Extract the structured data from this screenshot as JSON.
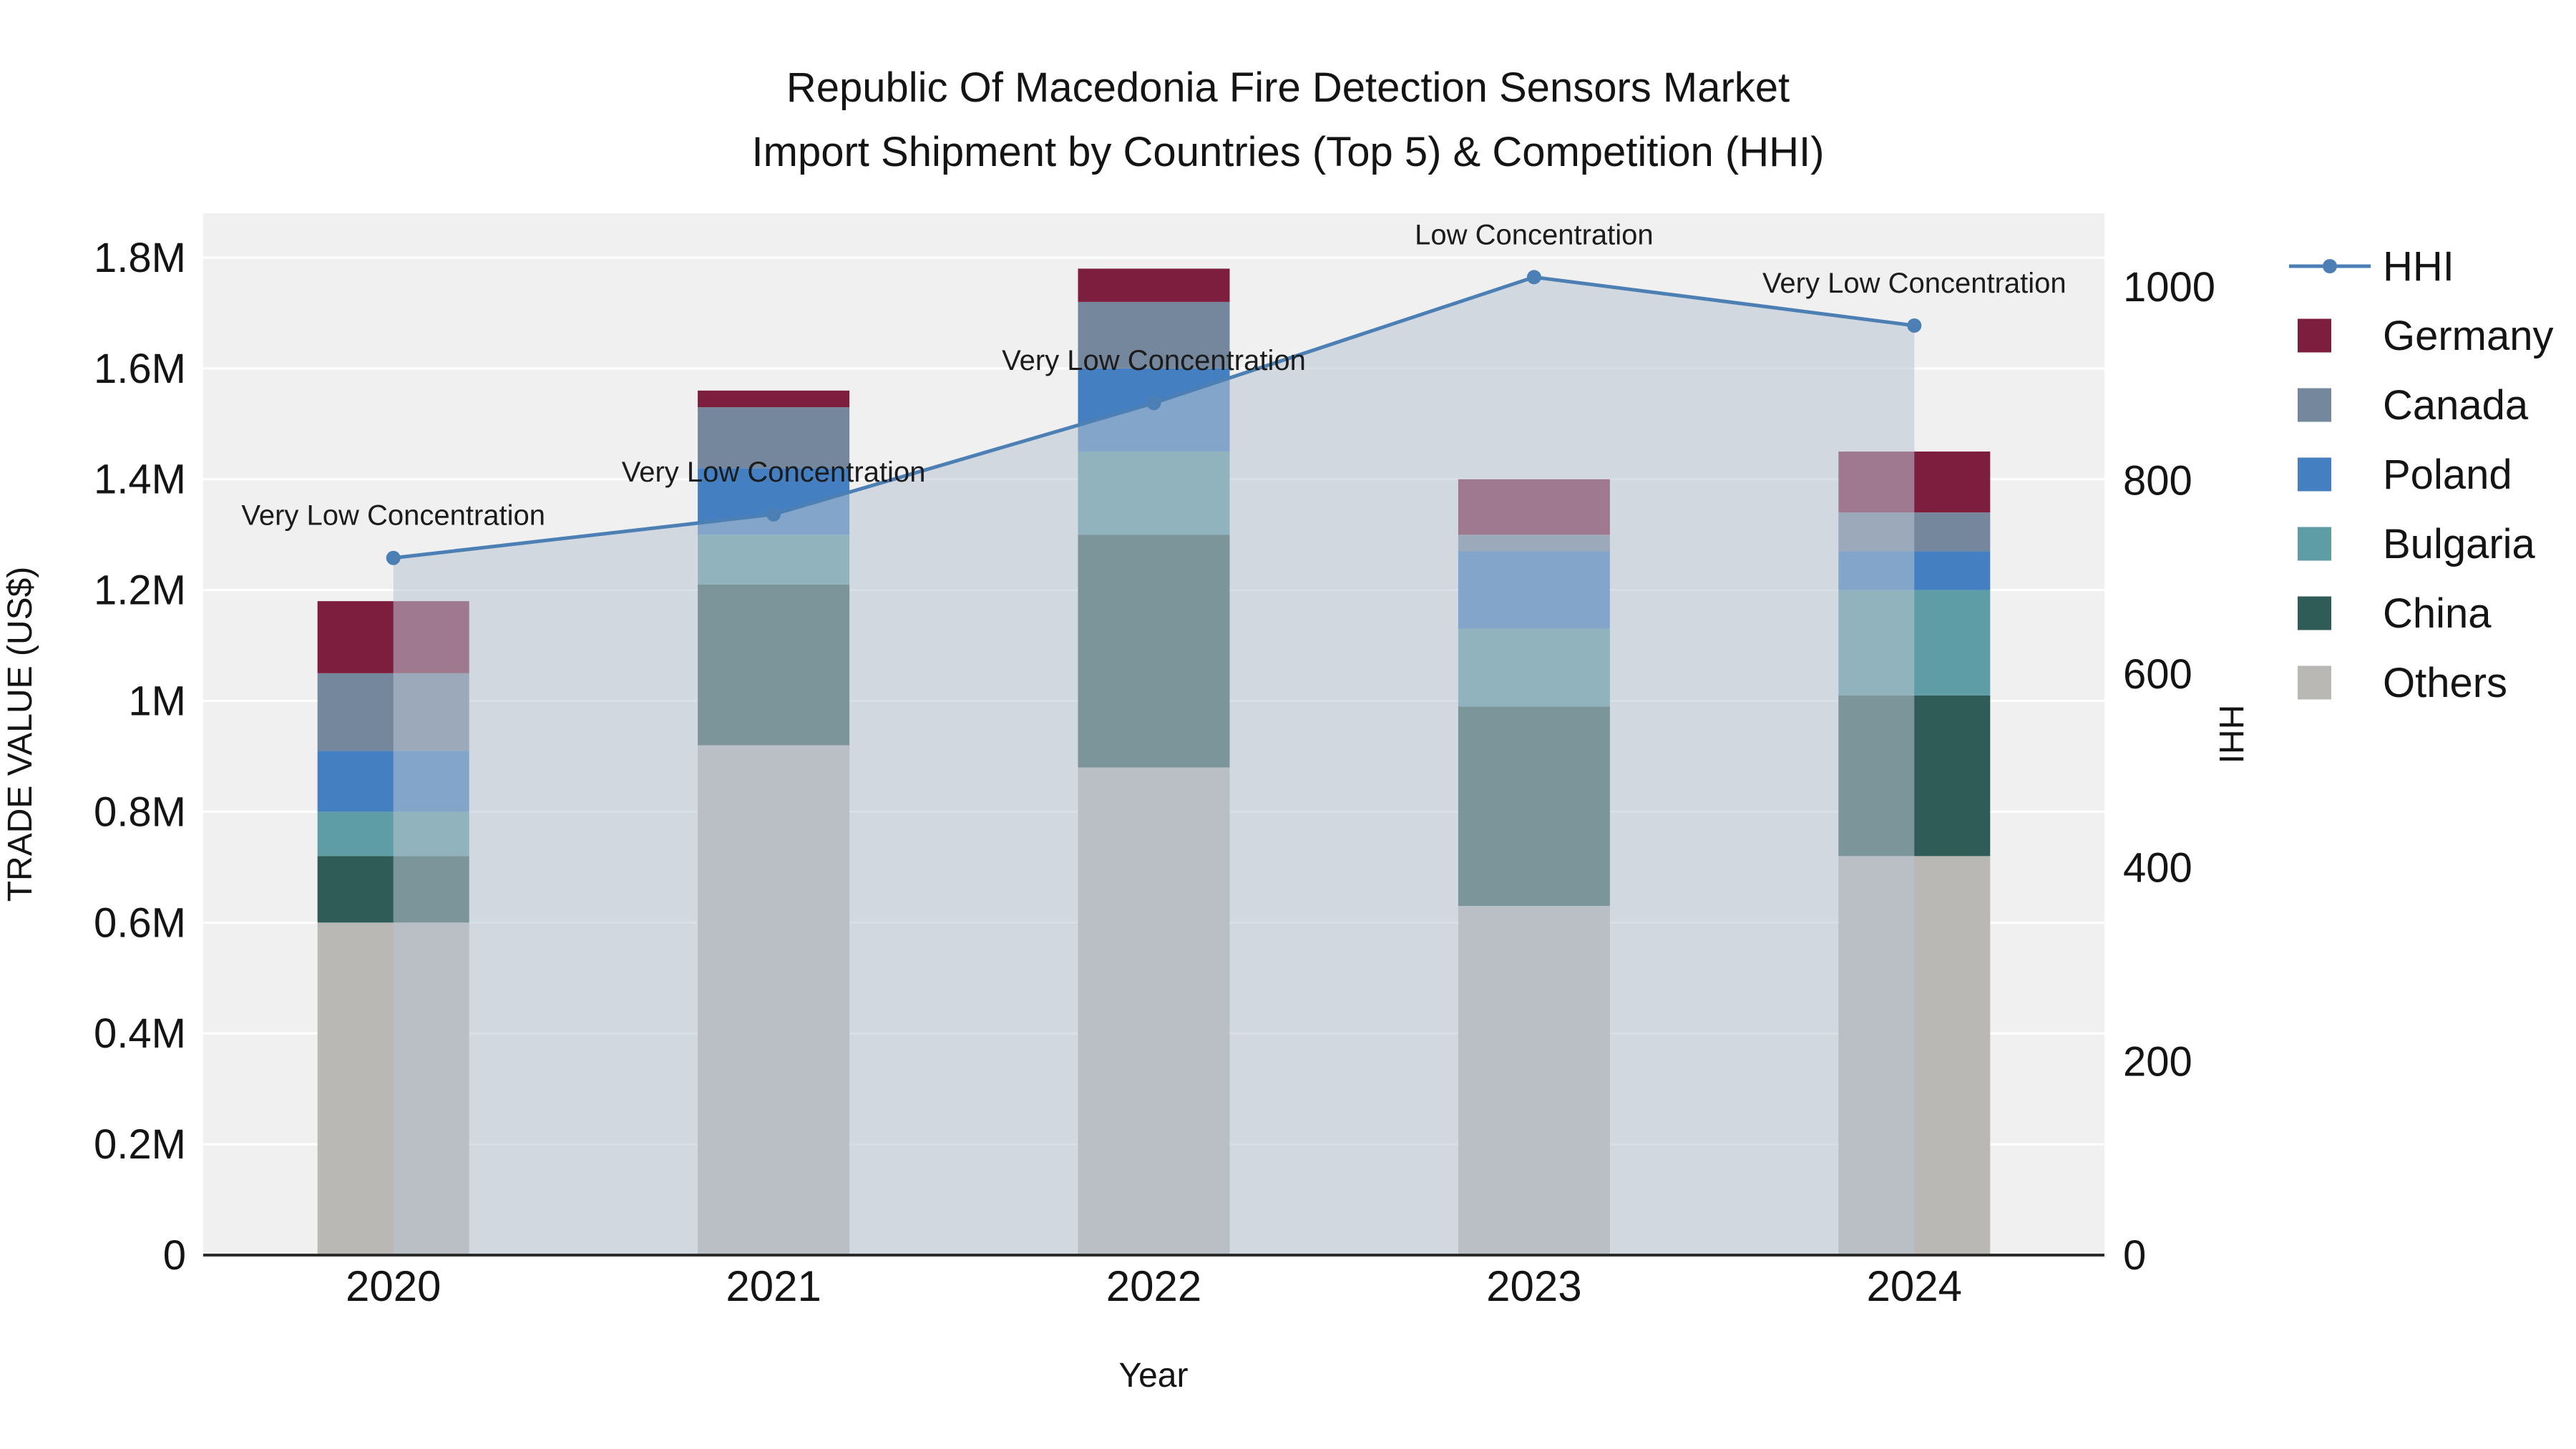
{
  "title": {
    "line1": "Republic Of Macedonia Fire Detection Sensors Market",
    "line2": "Import Shipment by Countries (Top 5) & Competition (HHI)"
  },
  "chart_data": {
    "type": "bar",
    "subtype": "stacked-bars-with-hhi-line-and-area",
    "categories": [
      "2020",
      "2021",
      "2022",
      "2023",
      "2024"
    ],
    "series": [
      {
        "name": "Others",
        "color": "#b9b8b4",
        "values": [
          600000,
          920000,
          880000,
          630000,
          720000
        ]
      },
      {
        "name": "China",
        "color": "#2f5c57",
        "values": [
          120000,
          290000,
          420000,
          360000,
          290000
        ]
      },
      {
        "name": "Bulgaria",
        "color": "#5e9da5",
        "values": [
          80000,
          90000,
          150000,
          140000,
          190000
        ]
      },
      {
        "name": "Poland",
        "color": "#447fc1",
        "values": [
          110000,
          120000,
          150000,
          140000,
          70000
        ]
      },
      {
        "name": "Canada",
        "color": "#75879d",
        "values": [
          140000,
          110000,
          120000,
          30000,
          70000
        ]
      },
      {
        "name": "Germany",
        "color": "#7e1e3f",
        "values": [
          130000,
          30000,
          60000,
          100000,
          110000
        ]
      }
    ],
    "bar_totals": [
      1180000,
      1560000,
      1780000,
      1400000,
      1450000
    ],
    "line": {
      "name": "HHI",
      "color": "#4c80b4",
      "area_color": "#b9c4d2",
      "values": [
        720,
        765,
        880,
        1010,
        960
      ],
      "annotations": [
        "Very Low Concentration",
        "Very Low Concentration",
        "Very Low Concentration",
        "Low Concentration",
        "Very Low Concentration"
      ]
    },
    "x_label": "Year",
    "y_left": {
      "label": "TRADE VALUE (US$)",
      "range": [
        0,
        1880000
      ],
      "ticks": [
        {
          "v": 0,
          "label": "0"
        },
        {
          "v": 200000,
          "label": "0.2M"
        },
        {
          "v": 400000,
          "label": "0.4M"
        },
        {
          "v": 600000,
          "label": "0.6M"
        },
        {
          "v": 800000,
          "label": "0.8M"
        },
        {
          "v": 1000000,
          "label": "1M"
        },
        {
          "v": 1200000,
          "label": "1.2M"
        },
        {
          "v": 1400000,
          "label": "1.4M"
        },
        {
          "v": 1600000,
          "label": "1.6M"
        },
        {
          "v": 1800000,
          "label": "1.8M"
        }
      ]
    },
    "y_right": {
      "label": "HHI",
      "range": [
        0,
        1076
      ],
      "ticks": [
        {
          "v": 0,
          "label": "0"
        },
        {
          "v": 200,
          "label": "200"
        },
        {
          "v": 400,
          "label": "400"
        },
        {
          "v": 600,
          "label": "600"
        },
        {
          "v": 800,
          "label": "800"
        },
        {
          "v": 1000,
          "label": "1000"
        }
      ]
    },
    "legend": [
      "HHI",
      "Germany",
      "Canada",
      "Poland",
      "Bulgaria",
      "China",
      "Others"
    ],
    "legend_position": "right",
    "grid": true
  }
}
